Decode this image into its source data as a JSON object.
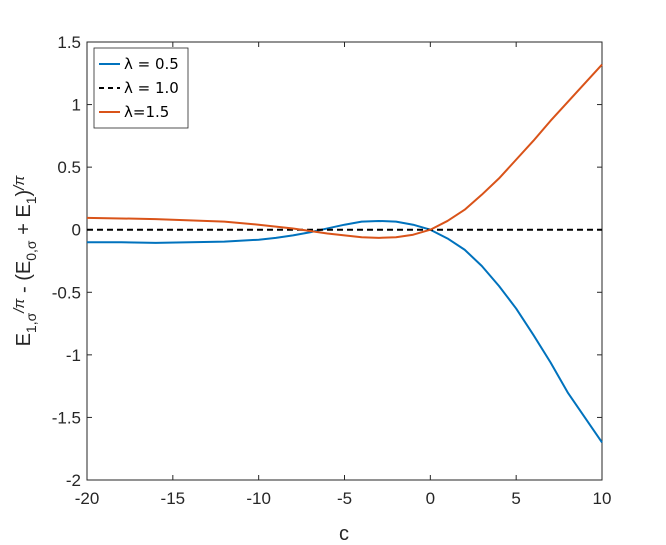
{
  "chart_data": {
    "type": "line",
    "xlabel": "c",
    "ylabel": "E1,σ/π - (E0,σ + E1)/π",
    "xlim": [
      -20,
      10
    ],
    "ylim": [
      -2,
      1.5
    ],
    "x_ticks": [
      -20,
      -15,
      -10,
      -5,
      0,
      5,
      10
    ],
    "x_tick_labels": [
      "-20",
      "-15",
      "-10",
      "-5",
      "0",
      "5",
      "10"
    ],
    "y_ticks": [
      -2,
      -1.5,
      -1,
      -0.5,
      0,
      0.5,
      1,
      1.5
    ],
    "y_tick_labels": [
      "-2",
      "-1.5",
      "-1",
      "-0.5",
      "0",
      "0.5",
      "1",
      "1.5"
    ],
    "grid": false,
    "legend_position": "top-left",
    "series": [
      {
        "name": "λ = 0.5",
        "color": "#0072BD",
        "style": "solid",
        "x": [
          -20,
          -18,
          -16,
          -14,
          -12,
          -10,
          -9,
          -8,
          -7,
          -6,
          -5,
          -4,
          -3,
          -2,
          -1,
          0,
          1,
          2,
          3,
          4,
          5,
          6,
          7,
          8,
          9,
          10
        ],
        "y": [
          -0.1,
          -0.1,
          -0.105,
          -0.1,
          -0.095,
          -0.08,
          -0.065,
          -0.045,
          -0.02,
          0.01,
          0.04,
          0.065,
          0.07,
          0.065,
          0.04,
          0.0,
          -0.07,
          -0.16,
          -0.29,
          -0.45,
          -0.63,
          -0.84,
          -1.06,
          -1.3,
          -1.5,
          -1.7
        ]
      },
      {
        "name": "λ = 1.0",
        "color": "#000000",
        "style": "dashed",
        "x": [
          -20,
          10
        ],
        "y": [
          0,
          0
        ]
      },
      {
        "name": "λ=1.5",
        "color": "#D95319",
        "style": "solid",
        "x": [
          -20,
          -18,
          -16,
          -14,
          -12,
          -10,
          -9,
          -8,
          -7,
          -6,
          -5,
          -4,
          -3,
          -2,
          -1,
          0,
          1,
          2,
          3,
          4,
          5,
          6,
          7,
          8,
          9,
          10
        ],
        "y": [
          0.095,
          0.09,
          0.085,
          0.075,
          0.065,
          0.04,
          0.025,
          0.01,
          -0.01,
          -0.03,
          -0.045,
          -0.06,
          -0.065,
          -0.06,
          -0.04,
          0.0,
          0.07,
          0.16,
          0.28,
          0.41,
          0.56,
          0.71,
          0.87,
          1.02,
          1.17,
          1.32
        ]
      }
    ]
  }
}
